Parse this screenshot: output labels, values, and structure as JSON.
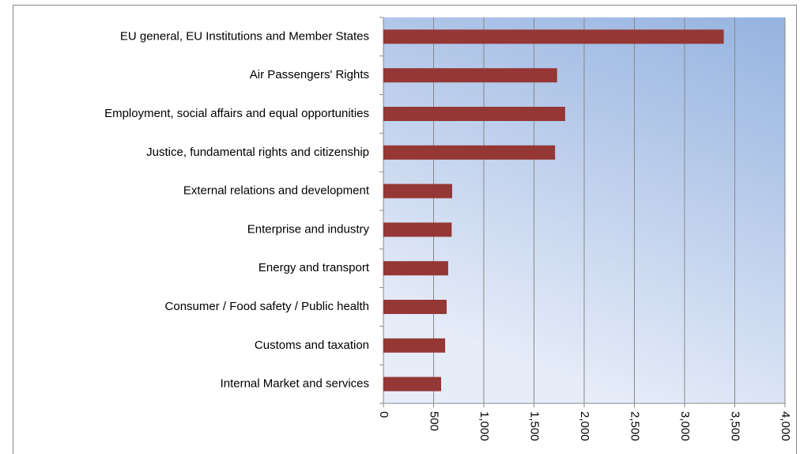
{
  "chart_data": {
    "type": "bar",
    "orientation": "horizontal",
    "categories": [
      "EU general, EU Institutions and Member States",
      "Air Passengers' Rights",
      "Employment, social affairs and equal opportunities",
      "Justice, fundamental rights and citizenship",
      "External relations and development",
      "Enterprise and industry",
      "Energy and transport",
      "Consumer / Food safety / Public health",
      "Customs and taxation",
      "Internal Market and services"
    ],
    "values": [
      3390,
      1730,
      1810,
      1710,
      685,
      680,
      645,
      630,
      615,
      575
    ],
    "color": "#953735",
    "xlim": [
      0,
      4000
    ],
    "xticks": [
      0,
      500,
      {
        "value": 1000,
        "label": "1,000"
      },
      {
        "value": 1500,
        "label": "1,500"
      },
      {
        "value": 2000,
        "label": "2,000"
      },
      {
        "value": 2500,
        "label": "2,500"
      },
      {
        "value": 3000,
        "label": "3,000"
      },
      {
        "value": 3500,
        "label": "3,500"
      },
      {
        "value": 4000,
        "label": "4,000"
      }
    ],
    "grid": true
  }
}
